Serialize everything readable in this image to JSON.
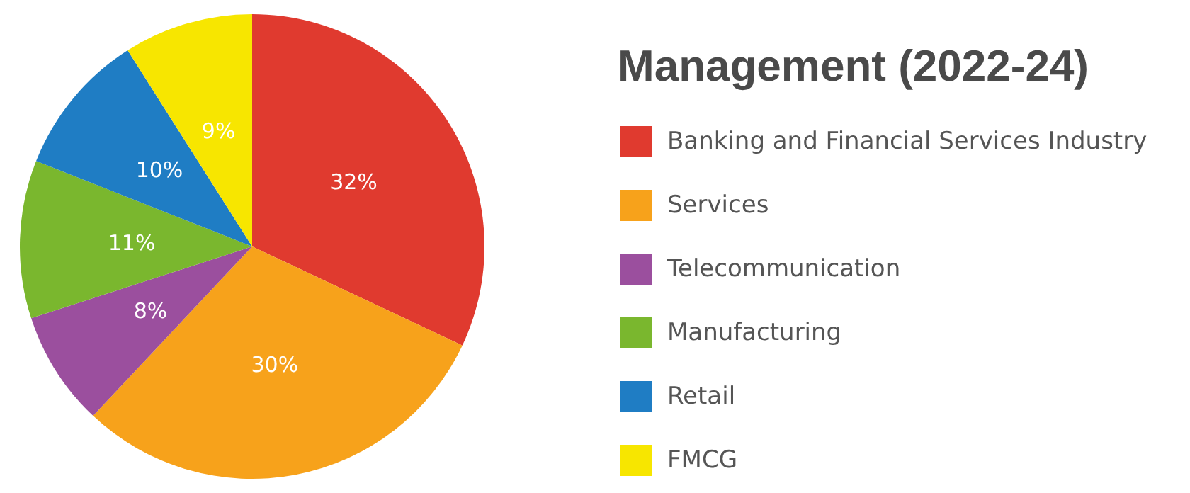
{
  "chart_data": {
    "type": "pie",
    "title": "Management (2022-24)",
    "categories": [
      "Banking and Financial Services Industry",
      "Services",
      "Telecommunication",
      "Manufacturing",
      "Retail",
      "FMCG"
    ],
    "values": [
      32,
      30,
      8,
      11,
      10,
      9
    ],
    "colors": [
      "#e03a2f",
      "#f7a21b",
      "#9b4f9e",
      "#7ab72e",
      "#1f7dc4",
      "#f7e600"
    ],
    "value_labels": [
      "32%",
      "30%",
      "8%",
      "11%",
      "10%",
      "9%"
    ],
    "legend": "right"
  }
}
